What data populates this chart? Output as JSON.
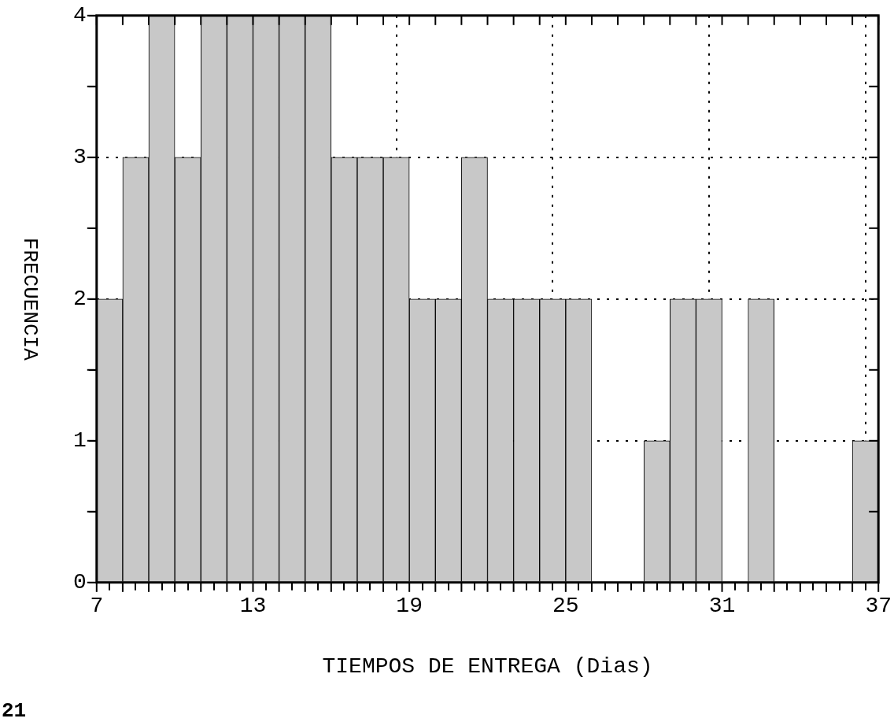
{
  "chart_data": {
    "type": "histogram",
    "xlabel": "TIEMPOS DE ENTREGA (Dias)",
    "ylabel": "FRECUENCIA",
    "bins": [
      7,
      8,
      9,
      10,
      11,
      12,
      13,
      14,
      15,
      16,
      17,
      18,
      19,
      20,
      21,
      22,
      23,
      24,
      25,
      26,
      27,
      28,
      29,
      30,
      31,
      32,
      33,
      34,
      35,
      36,
      37
    ],
    "values": [
      2,
      3,
      4,
      3,
      4,
      4,
      4,
      4,
      4,
      3,
      3,
      3,
      2,
      2,
      3,
      2,
      2,
      2,
      2,
      0,
      0,
      1,
      2,
      2,
      0,
      2,
      0,
      0,
      0,
      1
    ],
    "color": "#c8c8c8",
    "xlim": [
      7,
      37
    ],
    "xticks": [
      7,
      {
        "value": 8,
        "label": null
      },
      {
        "value": 9,
        "label": null
      },
      {
        "value": 10,
        "label": null
      },
      {
        "value": 11,
        "label": null
      },
      {
        "value": 12,
        "label": null
      },
      13,
      {
        "value": 14,
        "label": null
      },
      {
        "value": 15,
        "label": null
      },
      {
        "value": 16,
        "label": null
      },
      {
        "value": 17,
        "label": null
      },
      {
        "value": 18,
        "label": null
      },
      19,
      {
        "value": 20,
        "label": null
      },
      {
        "value": 21,
        "label": null
      },
      {
        "value": 22,
        "label": null
      },
      {
        "value": 23,
        "label": null
      },
      {
        "value": 24,
        "label": null
      },
      25,
      {
        "value": 26,
        "label": null
      },
      {
        "value": 27,
        "label": null
      },
      {
        "value": 28,
        "label": null
      },
      {
        "value": 29,
        "label": null
      },
      {
        "value": 30,
        "label": null
      },
      31,
      {
        "value": 32,
        "label": null
      },
      {
        "value": 33,
        "label": null
      },
      {
        "value": 34,
        "label": null
      },
      {
        "value": 35,
        "label": null
      },
      {
        "value": 36,
        "label": null
      },
      37
    ],
    "ylim": [
      0,
      4
    ],
    "yticks": [
      0,
      {
        "value": 0.5,
        "label": null
      },
      1,
      {
        "value": 1.5,
        "label": null
      },
      2,
      {
        "value": 2.5,
        "label": null
      },
      3,
      {
        "value": 3.5,
        "label": null
      },
      4
    ],
    "grid": true,
    "annotations": [
      "21"
    ]
  }
}
